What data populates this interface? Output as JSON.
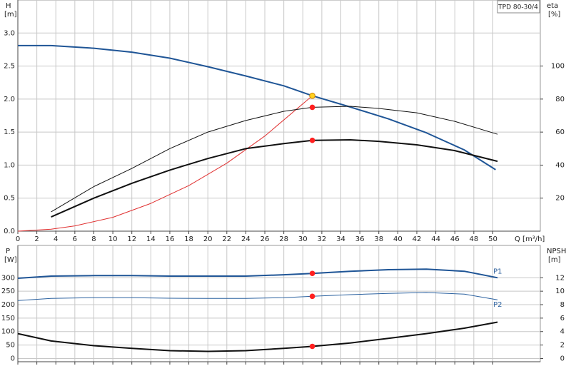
{
  "chart_data": [
    {
      "type": "line",
      "title": "TPD 80-30/4",
      "xlabel": "Q [m³/h]",
      "ylabel": "H",
      "yunit": "[m]",
      "y2label": "eta",
      "y2unit": "[%]",
      "xlim": [
        0,
        55
      ],
      "xticks": [
        0,
        2,
        4,
        6,
        8,
        10,
        12,
        14,
        16,
        18,
        20,
        22,
        24,
        26,
        28,
        30,
        32,
        34,
        36,
        38,
        40,
        42,
        44,
        46,
        48,
        50
      ],
      "show_xtick_labels": true,
      "ylim": [
        0,
        3.5
      ],
      "yticks": [
        {
          "value": 0,
          "label": "0.0"
        },
        0.5,
        {
          "value": 1,
          "label": "1.0"
        },
        1.5,
        {
          "value": 2,
          "label": "2.0"
        },
        2.5,
        {
          "value": 3,
          "label": "3.0"
        }
      ],
      "y2lim": [
        0,
        140
      ],
      "y2ticks": [
        20,
        40,
        60,
        80,
        100
      ],
      "grid": true,
      "series": [
        {
          "color": "#1f5596",
          "width": 2,
          "x": [
            0,
            3.5,
            8,
            12,
            16,
            20,
            24,
            28,
            31,
            35,
            39,
            43,
            47,
            50.3
          ],
          "values": [
            2.81,
            2.81,
            2.77,
            2.71,
            2.62,
            2.49,
            2.35,
            2.2,
            2.05,
            1.88,
            1.7,
            1.49,
            1.23,
            0.93
          ]
        },
        {
          "color": "#e03030",
          "width": 1,
          "x": [
            0,
            3.5,
            6,
            10,
            14,
            18,
            22,
            26,
            31
          ],
          "values": [
            0,
            0.03,
            0.08,
            0.21,
            0.42,
            0.69,
            1.03,
            1.44,
            2.05
          ]
        },
        {
          "color": "#111111",
          "width": 1,
          "axis": "y2",
          "x": [
            3.5,
            8,
            12,
            16,
            20,
            24,
            28,
            31,
            35,
            38,
            42,
            46,
            50.5
          ],
          "values": [
            11.7,
            27,
            38,
            50,
            60,
            67,
            72.6,
            75,
            75.6,
            74.3,
            71.7,
            66.5,
            58.7
          ]
        },
        {
          "color": "#111111",
          "width": 2,
          "axis": "y2",
          "x": [
            3.5,
            8,
            12,
            16,
            20,
            24,
            28,
            31,
            35,
            38,
            42,
            46,
            50.5
          ],
          "values": [
            8.6,
            20,
            29,
            37,
            44,
            50,
            53,
            55,
            55.3,
            54.4,
            52.3,
            48.8,
            42.3
          ]
        }
      ],
      "markers": [
        {
          "x": 31,
          "value": 2.05,
          "color": "#ffd21f"
        },
        {
          "x": 31,
          "value": 75,
          "color": "#ff2020",
          "axis": "y2"
        },
        {
          "x": 31,
          "value": 55,
          "color": "#ff2020",
          "axis": "y2"
        }
      ]
    },
    {
      "type": "line",
      "ylabel": "P",
      "yunit": "[W]",
      "y2label": "NPSH",
      "y2unit": "[m]",
      "xlim": [
        0,
        55
      ],
      "xticks": [
        0,
        2,
        4,
        6,
        8,
        10,
        12,
        14,
        16,
        18,
        20,
        22,
        24,
        26,
        28,
        30,
        32,
        34,
        36,
        38,
        40,
        42,
        44,
        46,
        48,
        50
      ],
      "show_xtick_labels": false,
      "ylim": [
        -12,
        420
      ],
      "yticks": [
        0,
        50,
        100,
        150,
        200,
        250,
        300
      ],
      "y2lim": [
        -0.48,
        16.8
      ],
      "y2ticks": [
        0,
        2,
        4,
        6,
        8,
        10,
        12
      ],
      "grid": true,
      "series": [
        {
          "name": "P1",
          "color": "#1f5596",
          "width": 2,
          "x": [
            0,
            3.5,
            8,
            12,
            16,
            20,
            24,
            28,
            31,
            35,
            39,
            43,
            47,
            50.5
          ],
          "values": [
            298,
            306,
            308,
            308,
            306,
            306,
            306,
            311,
            316,
            324,
            330,
            332,
            324,
            300
          ]
        },
        {
          "name": "P2",
          "color": "#2c62a0",
          "width": 1,
          "x": [
            0,
            3.5,
            8,
            12,
            16,
            20,
            24,
            28,
            31,
            35,
            39,
            43,
            47,
            50.5
          ],
          "values": [
            215,
            223,
            226,
            226,
            224,
            223,
            223,
            226,
            231,
            237,
            242,
            245,
            239,
            218
          ]
        },
        {
          "color": "#111111",
          "width": 2,
          "axis": "y2",
          "x": [
            0,
            3.5,
            8,
            12,
            16,
            20,
            24,
            28,
            31,
            35,
            39,
            43,
            47,
            50.5
          ],
          "values": [
            3.7,
            2.6,
            1.9,
            1.5,
            1.16,
            1.06,
            1.16,
            1.5,
            1.8,
            2.3,
            3,
            3.7,
            4.5,
            5.4
          ]
        }
      ],
      "markers": [
        {
          "x": 31,
          "value": 316,
          "color": "#ff2020"
        },
        {
          "x": 31,
          "value": 231,
          "color": "#ff2020"
        },
        {
          "x": 31,
          "value": 1.8,
          "color": "#ff2020",
          "axis": "y2"
        }
      ]
    }
  ]
}
